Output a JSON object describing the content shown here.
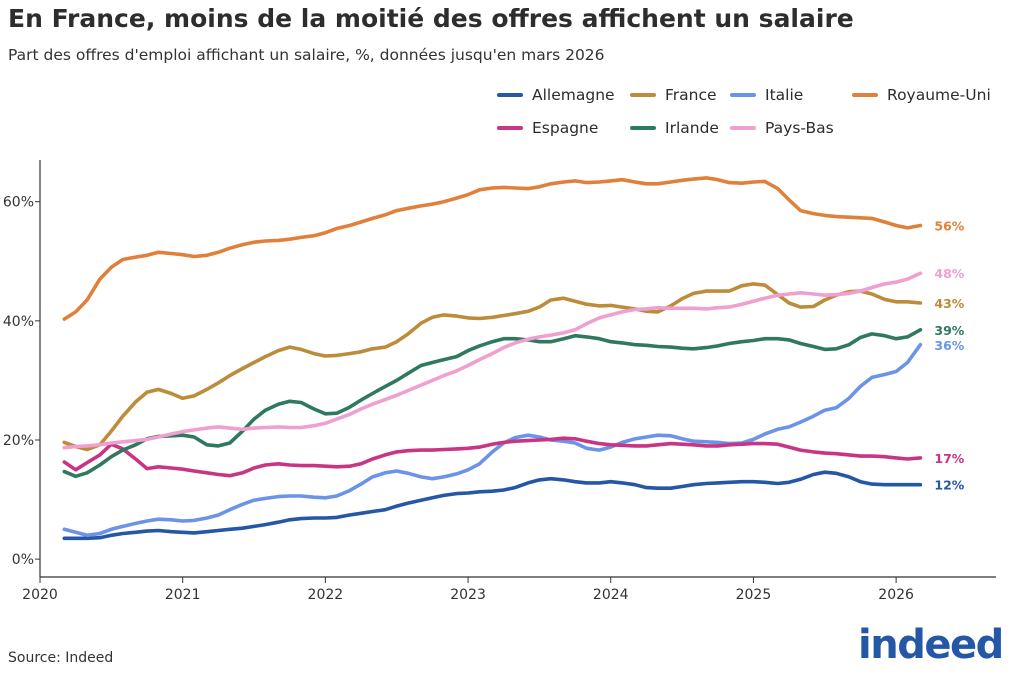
{
  "header": {
    "title": "En France, moins de la moitié des offres affichent un salaire",
    "subtitle": "Part des offres d'emploi affichant un salaire, %, données jusqu'en mars 2026"
  },
  "footer": {
    "source": "Source: Indeed",
    "logo_text": "indeed"
  },
  "chart_data": {
    "type": "line",
    "title": "En France, moins de la moitié des offres affichent un salaire",
    "subtitle": "Part des offres d'emploi affichant un salaire, %, données jusqu'en mars 2026",
    "xlabel": "",
    "ylabel": "",
    "x_ticks": [
      "2020",
      "2021",
      "2022",
      "2023",
      "2024",
      "2025",
      "2026"
    ],
    "y_ticks": [
      "0%",
      "20%",
      "40%",
      "60%"
    ],
    "xlim": [
      2020,
      2026.7
    ],
    "ylim": [
      -3,
      67
    ],
    "grid": false,
    "legend": "top",
    "x": [
      2020.17,
      2020.25,
      2020.33,
      2020.42,
      2020.5,
      2020.58,
      2020.67,
      2020.75,
      2020.83,
      2020.92,
      2021.0,
      2021.08,
      2021.17,
      2021.25,
      2021.33,
      2021.42,
      2021.5,
      2021.58,
      2021.67,
      2021.75,
      2021.83,
      2021.92,
      2022.0,
      2022.08,
      2022.17,
      2022.25,
      2022.33,
      2022.42,
      2022.5,
      2022.58,
      2022.67,
      2022.75,
      2022.83,
      2022.92,
      2023.0,
      2023.08,
      2023.17,
      2023.25,
      2023.33,
      2023.42,
      2023.5,
      2023.58,
      2023.67,
      2023.75,
      2023.83,
      2023.92,
      2024.0,
      2024.08,
      2024.17,
      2024.25,
      2024.33,
      2024.42,
      2024.5,
      2024.58,
      2024.67,
      2024.75,
      2024.83,
      2024.92,
      2025.0,
      2025.08,
      2025.17,
      2025.25,
      2025.33,
      2025.42,
      2025.5,
      2025.58,
      2025.67,
      2025.75,
      2025.83,
      2025.92,
      2026.0,
      2026.08,
      2026.17
    ],
    "series": [
      {
        "name": "Allemagne",
        "color": "#2557a7",
        "end_label": "12%",
        "values": [
          3.5,
          3.5,
          3.5,
          3.6,
          4.0,
          4.3,
          4.5,
          4.7,
          4.8,
          4.6,
          4.5,
          4.4,
          4.6,
          4.8,
          5.0,
          5.2,
          5.5,
          5.8,
          6.2,
          6.6,
          6.8,
          6.9,
          6.9,
          7.0,
          7.4,
          7.7,
          8.0,
          8.3,
          8.9,
          9.4,
          9.9,
          10.3,
          10.7,
          11.0,
          11.1,
          11.3,
          11.4,
          11.6,
          12.0,
          12.8,
          13.3,
          13.5,
          13.3,
          13.0,
          12.8,
          12.8,
          13.0,
          12.8,
          12.5,
          12.0,
          11.9,
          11.9,
          12.2,
          12.5,
          12.7,
          12.8,
          12.9,
          13.0,
          13.0,
          12.9,
          12.7,
          12.9,
          13.4,
          14.2,
          14.6,
          14.4,
          13.8,
          13.0,
          12.6,
          12.5,
          12.5,
          12.5,
          12.5
        ]
      },
      {
        "name": "France",
        "color": "#bd8c3b",
        "end_label": "43%",
        "values": [
          19.6,
          18.9,
          18.4,
          19.2,
          21.5,
          24.0,
          26.4,
          28.0,
          28.5,
          27.8,
          27.0,
          27.4,
          28.5,
          29.6,
          30.8,
          32.0,
          33.0,
          34.0,
          35.0,
          35.6,
          35.2,
          34.5,
          34.1,
          34.2,
          34.5,
          34.8,
          35.3,
          35.6,
          36.5,
          37.8,
          39.6,
          40.6,
          41.0,
          40.8,
          40.5,
          40.4,
          40.6,
          40.9,
          41.2,
          41.6,
          42.3,
          43.5,
          43.8,
          43.3,
          42.8,
          42.5,
          42.6,
          42.3,
          42.0,
          41.6,
          41.5,
          42.5,
          43.7,
          44.6,
          45.0,
          45.0,
          45.0,
          45.9,
          46.2,
          46.0,
          44.4,
          43.0,
          42.3,
          42.4,
          43.5,
          44.3,
          44.9,
          45.0,
          44.5,
          43.6,
          43.2,
          43.2,
          43.0
        ]
      },
      {
        "name": "Italie",
        "color": "#6b93e8",
        "end_label": "36%",
        "values": [
          5.0,
          4.5,
          4.0,
          4.3,
          5.0,
          5.5,
          6.0,
          6.4,
          6.7,
          6.6,
          6.4,
          6.5,
          6.9,
          7.4,
          8.3,
          9.2,
          9.9,
          10.2,
          10.5,
          10.6,
          10.6,
          10.4,
          10.3,
          10.6,
          11.5,
          12.6,
          13.8,
          14.5,
          14.8,
          14.4,
          13.8,
          13.5,
          13.8,
          14.3,
          15.0,
          16.0,
          18.0,
          19.5,
          20.4,
          20.8,
          20.5,
          20.0,
          19.8,
          19.5,
          18.6,
          18.3,
          18.8,
          19.6,
          20.2,
          20.5,
          20.8,
          20.7,
          20.2,
          19.8,
          19.7,
          19.6,
          19.4,
          19.5,
          20.1,
          21.0,
          21.8,
          22.2,
          23.0,
          24.0,
          25.0,
          25.4,
          27.0,
          29.0,
          30.5,
          31.0,
          31.5,
          33.0,
          36.0
        ]
      },
      {
        "name": "Royaume-Uni",
        "color": "#e0803a",
        "end_label": "56%",
        "values": [
          40.3,
          41.5,
          43.5,
          47.0,
          49.0,
          50.3,
          50.7,
          51.0,
          51.5,
          51.3,
          51.1,
          50.8,
          51.0,
          51.5,
          52.2,
          52.8,
          53.2,
          53.4,
          53.5,
          53.7,
          54.0,
          54.3,
          54.8,
          55.5,
          56.0,
          56.6,
          57.2,
          57.8,
          58.5,
          58.9,
          59.3,
          59.6,
          60.0,
          60.6,
          61.2,
          62.0,
          62.3,
          62.4,
          62.3,
          62.2,
          62.5,
          63.0,
          63.3,
          63.5,
          63.2,
          63.3,
          63.5,
          63.7,
          63.3,
          63.0,
          63.0,
          63.3,
          63.6,
          63.8,
          64.0,
          63.7,
          63.2,
          63.1,
          63.3,
          63.4,
          62.2,
          60.3,
          58.5,
          58.0,
          57.7,
          57.5,
          57.4,
          57.3,
          57.2,
          56.6,
          56.0,
          55.6,
          56.0
        ]
      },
      {
        "name": "Espagne",
        "color": "#c83584",
        "end_label": "17%",
        "values": [
          16.3,
          15.0,
          16.2,
          17.5,
          19.3,
          18.5,
          16.8,
          15.2,
          15.5,
          15.3,
          15.1,
          14.8,
          14.5,
          14.2,
          14.0,
          14.5,
          15.3,
          15.8,
          16.0,
          15.8,
          15.7,
          15.7,
          15.6,
          15.5,
          15.6,
          16.0,
          16.8,
          17.5,
          18.0,
          18.2,
          18.3,
          18.3,
          18.4,
          18.5,
          18.6,
          18.8,
          19.3,
          19.6,
          19.8,
          19.9,
          20.0,
          20.1,
          20.3,
          20.2,
          19.8,
          19.4,
          19.2,
          19.1,
          19.0,
          19.0,
          19.2,
          19.4,
          19.3,
          19.2,
          19.0,
          19.0,
          19.2,
          19.3,
          19.4,
          19.4,
          19.3,
          18.8,
          18.3,
          18.0,
          17.8,
          17.7,
          17.5,
          17.3,
          17.3,
          17.2,
          17.0,
          16.8,
          17.0
        ]
      },
      {
        "name": "Irlande",
        "color": "#2f7a5e",
        "end_label": "39%",
        "values": [
          14.7,
          13.9,
          14.5,
          15.8,
          17.2,
          18.3,
          19.2,
          20.2,
          20.6,
          20.7,
          20.8,
          20.5,
          19.2,
          19.0,
          19.5,
          21.5,
          23.5,
          25.0,
          26.0,
          26.5,
          26.3,
          25.2,
          24.4,
          24.5,
          25.5,
          26.7,
          27.8,
          29.0,
          30.0,
          31.2,
          32.5,
          33.0,
          33.5,
          34.0,
          35.0,
          35.8,
          36.5,
          37.0,
          37.0,
          36.8,
          36.5,
          36.5,
          37.0,
          37.5,
          37.3,
          37.0,
          36.5,
          36.3,
          36.0,
          35.9,
          35.7,
          35.6,
          35.4,
          35.3,
          35.5,
          35.8,
          36.2,
          36.5,
          36.7,
          37.0,
          37.0,
          36.8,
          36.2,
          35.7,
          35.2,
          35.3,
          36.0,
          37.2,
          37.8,
          37.5,
          37.0,
          37.3,
          38.5
        ]
      },
      {
        "name": "Pays-Bas",
        "color": "#ef9fd0",
        "end_label": "48%",
        "values": [
          18.7,
          18.9,
          19.0,
          19.2,
          19.5,
          19.7,
          19.9,
          20.1,
          20.5,
          21.0,
          21.4,
          21.7,
          22.0,
          22.2,
          22.0,
          21.8,
          22.0,
          22.1,
          22.2,
          22.1,
          22.1,
          22.4,
          22.8,
          23.5,
          24.3,
          25.2,
          26.0,
          26.8,
          27.5,
          28.3,
          29.2,
          30.0,
          30.8,
          31.6,
          32.5,
          33.5,
          34.5,
          35.5,
          36.3,
          36.9,
          37.3,
          37.6,
          38.0,
          38.5,
          39.5,
          40.5,
          41.0,
          41.5,
          41.9,
          42.0,
          42.2,
          42.1,
          42.1,
          42.1,
          42.0,
          42.2,
          42.3,
          42.8,
          43.3,
          43.8,
          44.3,
          44.5,
          44.7,
          44.5,
          44.3,
          44.4,
          44.6,
          45.0,
          45.6,
          46.2,
          46.5,
          47.0,
          48.0
        ]
      }
    ]
  }
}
